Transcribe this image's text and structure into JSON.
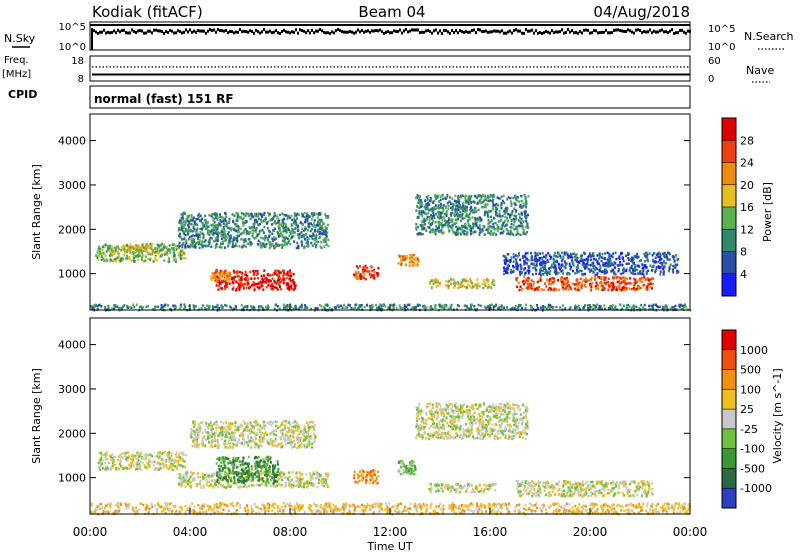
{
  "header": {
    "station": "Kodiak (fitACF)",
    "beam": "Beam 04",
    "date": "04/Aug/2018"
  },
  "params": {
    "nsky_label": "N.Sky",
    "nsky_top": "10^5",
    "nsky_bottom": "10^0",
    "nsearch_label": "N.Search",
    "nsearch_top": "10^5",
    "nsearch_bottom": "10^0",
    "freq_label": "Freq.",
    "freq_unit": "[MHz]",
    "freq_top": "18",
    "freq_bottom": "8",
    "nave_label": "Nave",
    "nave_top": "60",
    "nave_bottom": "0",
    "cpid_label": "CPID",
    "cpid_value": "normal (fast) 151 RF"
  },
  "chart_data": [
    {
      "type": "heatmap",
      "name": "Power",
      "ylabel": "Slant Range [km]",
      "yticks": [
        1000,
        2000,
        3000,
        4000
      ],
      "ylim": [
        180,
        4600
      ],
      "xlim_hours": [
        0,
        24
      ],
      "colorbar_label": "Power [dB]",
      "colorbar_ticks": [
        "4",
        "8",
        "12",
        "16",
        "20",
        "24",
        "28"
      ],
      "colors": [
        "#1a1aff",
        "#2a4fa8",
        "#2e8a6a",
        "#58b050",
        "#e6c020",
        "#f08a10",
        "#f04010",
        "#e00000"
      ],
      "regions": [
        {
          "t": [
            5.0,
            8.2
          ],
          "r": [
            650,
            1100
          ],
          "level": 7
        },
        {
          "t": [
            4.8,
            5.6
          ],
          "r": [
            850,
            1050
          ],
          "level": 5
        },
        {
          "t": [
            10.5,
            11.5
          ],
          "r": [
            900,
            1200
          ],
          "level": 6
        },
        {
          "t": [
            12.3,
            13.1
          ],
          "r": [
            1200,
            1450
          ],
          "level": 5
        },
        {
          "t": [
            13.5,
            16.2
          ],
          "r": [
            700,
            900
          ],
          "level": 4
        },
        {
          "t": [
            17.0,
            22.5
          ],
          "r": [
            650,
            950
          ],
          "level": 6
        },
        {
          "t": [
            0.2,
            3.8
          ],
          "r": [
            1300,
            1700
          ],
          "level": 3
        },
        {
          "t": [
            1.0,
            2.5
          ],
          "r": [
            1500,
            1650
          ],
          "level": 4
        },
        {
          "t": [
            3.5,
            9.5
          ],
          "r": [
            1600,
            2400
          ],
          "level": 2
        },
        {
          "t": [
            13.0,
            17.5
          ],
          "r": [
            1900,
            2800
          ],
          "level": 2
        },
        {
          "t": [
            16.5,
            23.5
          ],
          "r": [
            1000,
            1500
          ],
          "level": 1
        },
        {
          "t": [
            0.0,
            24.0
          ],
          "r": [
            200,
            330
          ],
          "level": 2
        }
      ]
    },
    {
      "type": "heatmap",
      "name": "Velocity",
      "ylabel": "Slant Range [km]",
      "yticks": [
        1000,
        2000,
        3000,
        4000
      ],
      "ylim": [
        180,
        4600
      ],
      "xlim_hours": [
        0,
        24
      ],
      "xticks": [
        "00:00",
        "04:00",
        "08:00",
        "12:00",
        "16:00",
        "20:00",
        "00:00"
      ],
      "xlabel": "Time UT",
      "colorbar_label": "Velocity [m s^-1]",
      "colorbar_ticks": [
        "1000",
        "500",
        "100",
        "25",
        "-25",
        "-100",
        "-500",
        "-1000"
      ],
      "colors": [
        "#2a40c0",
        "#2a6a40",
        "#3a9a30",
        "#70c040",
        "#c8c8c8",
        "#f0c020",
        "#f09010",
        "#f05010",
        "#e00000"
      ],
      "regions": [
        {
          "t": [
            0.3,
            3.8
          ],
          "r": [
            1200,
            1600
          ],
          "level": 4
        },
        {
          "t": [
            3.5,
            9.5
          ],
          "r": [
            800,
            1150
          ],
          "level": 4
        },
        {
          "t": [
            5.0,
            7.5
          ],
          "r": [
            900,
            1500
          ],
          "level": 2
        },
        {
          "t": [
            10.5,
            11.5
          ],
          "r": [
            900,
            1200
          ],
          "level": 6
        },
        {
          "t": [
            12.3,
            13.0
          ],
          "r": [
            1100,
            1400
          ],
          "level": 3
        },
        {
          "t": [
            13.5,
            16.2
          ],
          "r": [
            700,
            900
          ],
          "level": 4
        },
        {
          "t": [
            17.0,
            22.5
          ],
          "r": [
            600,
            950
          ],
          "level": 4
        },
        {
          "t": [
            4.0,
            9.0
          ],
          "r": [
            1700,
            2300
          ],
          "level": 4
        },
        {
          "t": [
            13.0,
            17.5
          ],
          "r": [
            1900,
            2700
          ],
          "level": 4
        },
        {
          "t": [
            0.0,
            24.0
          ],
          "r": [
            200,
            450
          ],
          "level": 5
        }
      ]
    }
  ]
}
